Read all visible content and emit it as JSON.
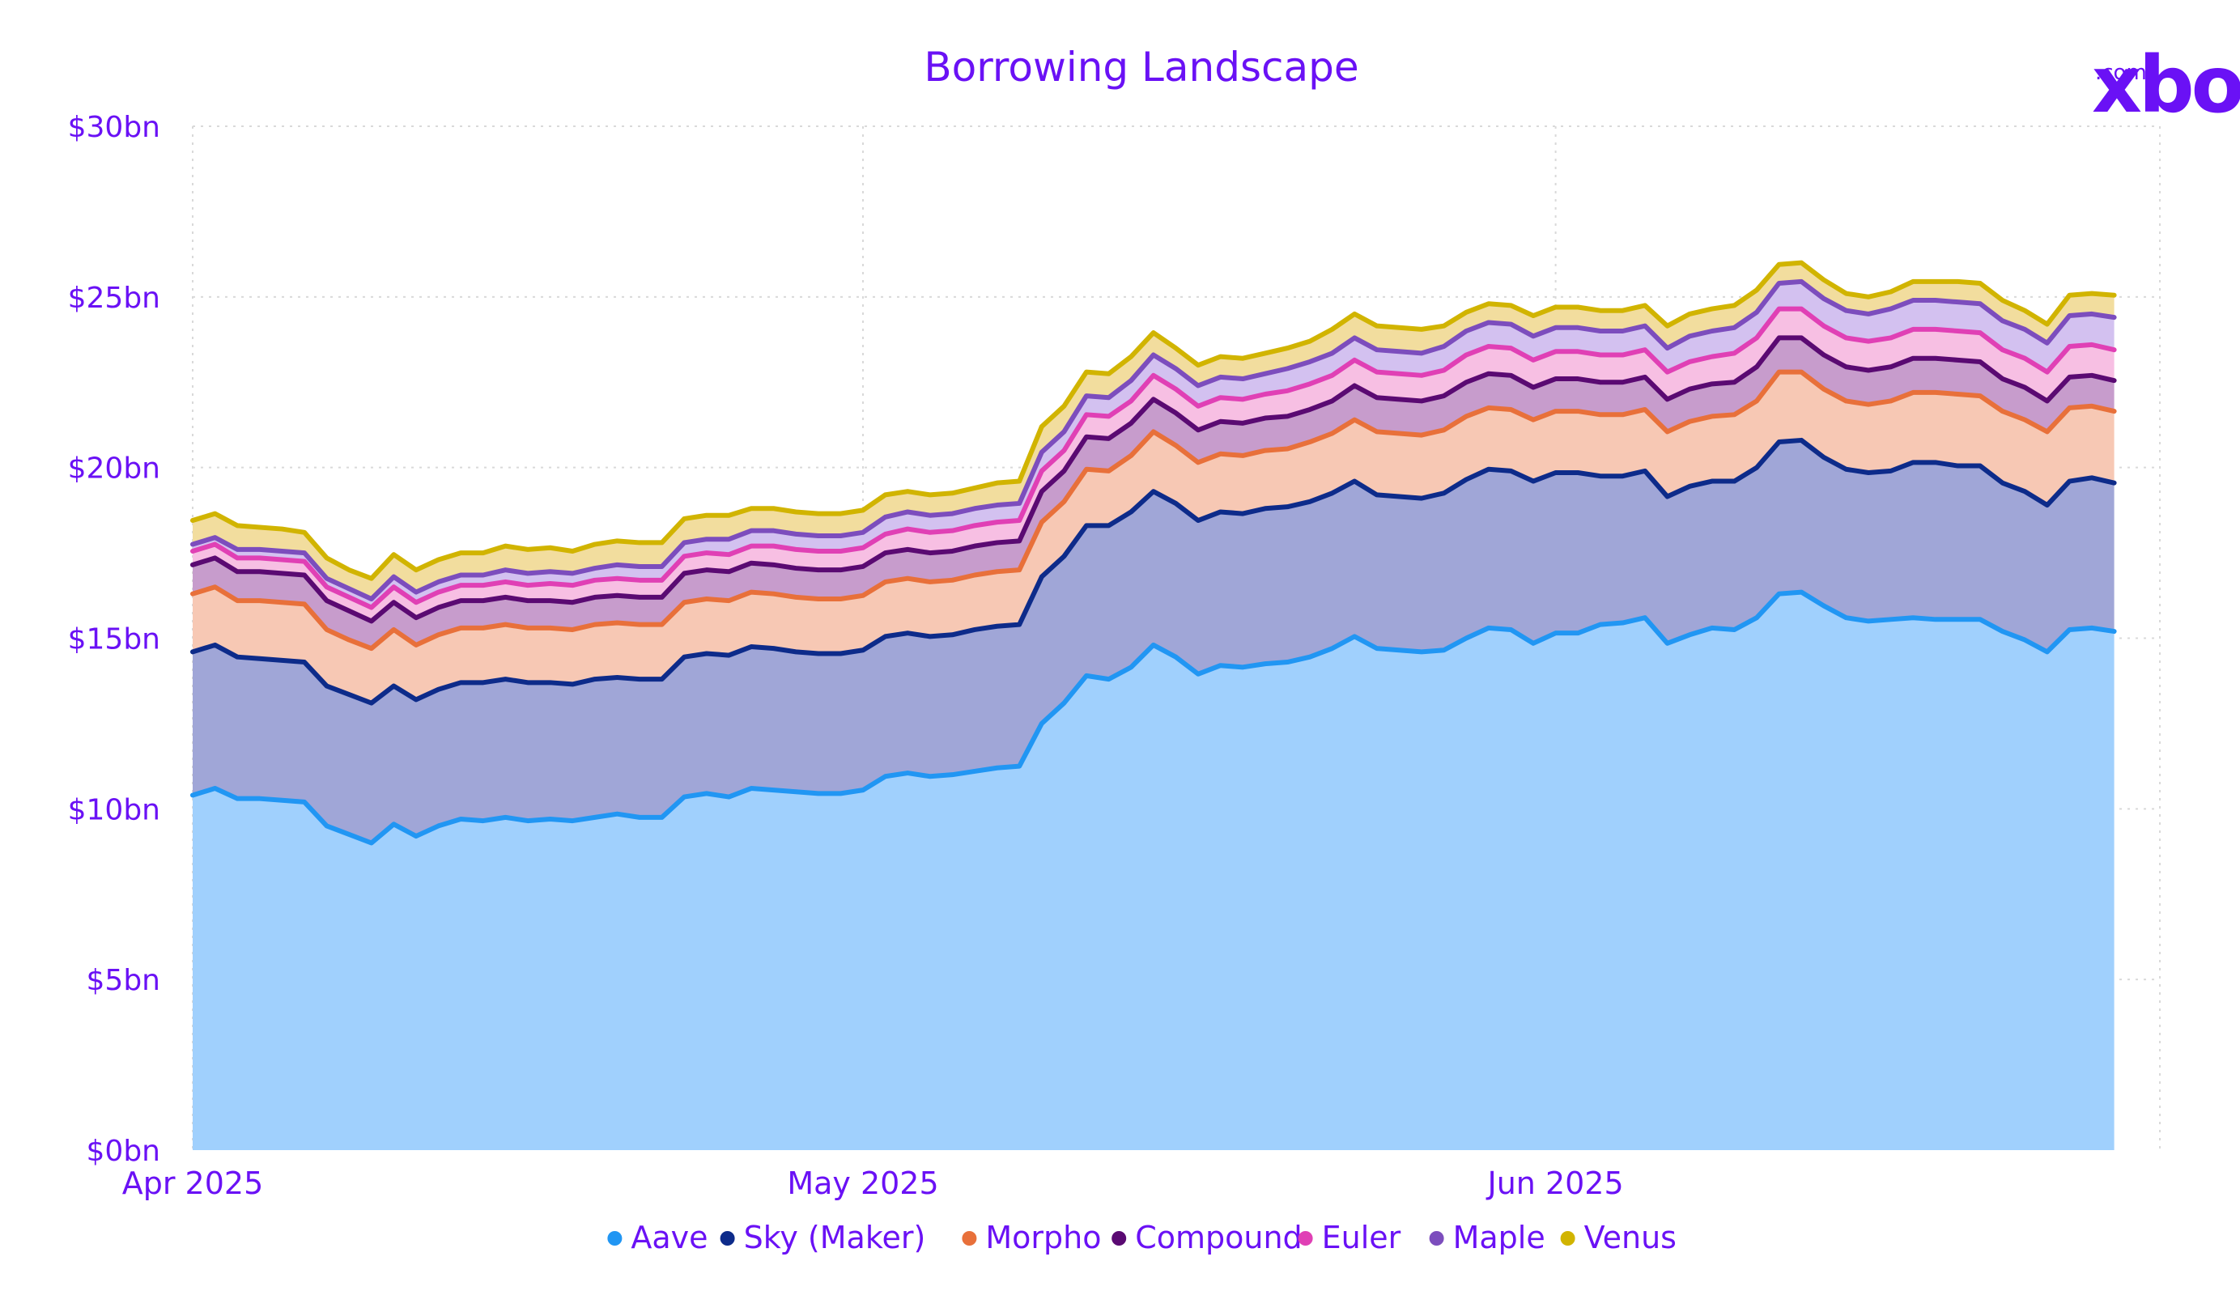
{
  "brand": {
    "name": "xbo",
    "suffix": ".com",
    "color": "#6a11f5"
  },
  "chart_data": {
    "type": "area",
    "stacked": true,
    "title": "Borrowing Landscape",
    "xlabel": "",
    "ylabel": "",
    "ylim": [
      0,
      30
    ],
    "yticks": [
      {
        "value": 0,
        "label": "$0bn"
      },
      {
        "value": 5,
        "label": "$5bn"
      },
      {
        "value": 10,
        "label": "$10bn"
      },
      {
        "value": 15,
        "label": "$15bn"
      },
      {
        "value": 20,
        "label": "$20bn"
      },
      {
        "value": 25,
        "label": "$25bn"
      },
      {
        "value": 30,
        "label": "$30bn"
      }
    ],
    "xticks": [
      {
        "value": 0,
        "label": "Apr 2025"
      },
      {
        "value": 30,
        "label": "May 2025"
      },
      {
        "value": 61,
        "label": "Jun 2025"
      }
    ],
    "x_start": "2025-04-01",
    "grid": true,
    "legend_position": "bottom-center",
    "series": [
      {
        "name": "Aave",
        "color": "#2196f3",
        "fill": "#a0d0fd",
        "values": [
          10.4,
          10.6,
          10.3,
          10.3,
          10.25,
          10.2,
          9.5,
          9.25,
          9.0,
          9.55,
          9.2,
          9.5,
          9.7,
          9.65,
          9.75,
          9.65,
          9.7,
          9.65,
          9.75,
          9.85,
          9.75,
          9.75,
          10.35,
          10.45,
          10.35,
          10.6,
          10.55,
          10.5,
          10.45,
          10.45,
          10.55,
          10.95,
          11.05,
          10.95,
          11.0,
          11.1,
          11.2,
          11.25,
          12.5,
          13.1,
          13.9,
          13.8,
          14.15,
          14.8,
          14.45,
          13.95,
          14.2,
          14.15,
          14.25,
          14.3,
          14.45,
          14.7,
          15.05,
          14.7,
          14.65,
          14.6,
          14.65,
          15.0,
          15.3,
          15.25,
          14.85,
          15.15,
          15.15,
          15.4,
          15.45,
          15.6,
          14.85,
          15.1,
          15.3,
          15.25,
          15.6,
          16.3,
          16.35,
          15.95,
          15.6,
          15.5,
          15.55,
          15.6,
          15.55,
          15.55,
          15.55,
          15.2,
          14.95,
          14.6,
          15.25,
          15.3,
          15.2
        ]
      },
      {
        "name": "Sky (Maker)",
        "color": "#0d2b8a",
        "fill": "#a0a6d7",
        "values": [
          4.2,
          4.2,
          4.15,
          4.1,
          4.1,
          4.1,
          4.1,
          4.1,
          4.1,
          4.05,
          4.0,
          4.0,
          4.0,
          4.05,
          4.05,
          4.05,
          4.0,
          4.0,
          4.05,
          4.0,
          4.05,
          4.05,
          4.1,
          4.1,
          4.15,
          4.15,
          4.15,
          4.1,
          4.1,
          4.1,
          4.1,
          4.1,
          4.1,
          4.1,
          4.1,
          4.15,
          4.15,
          4.15,
          4.3,
          4.3,
          4.4,
          4.5,
          4.55,
          4.5,
          4.5,
          4.5,
          4.5,
          4.5,
          4.55,
          4.55,
          4.55,
          4.55,
          4.55,
          4.5,
          4.5,
          4.5,
          4.6,
          4.65,
          4.65,
          4.65,
          4.75,
          4.7,
          4.7,
          4.35,
          4.3,
          4.3,
          4.3,
          4.35,
          4.3,
          4.35,
          4.4,
          4.45,
          4.45,
          4.35,
          4.35,
          4.35,
          4.35,
          4.55,
          4.6,
          4.5,
          4.5,
          4.35,
          4.35,
          4.3,
          4.35,
          4.4,
          4.35
        ]
      },
      {
        "name": "Morpho",
        "color": "#e8703a",
        "fill": "#f7c8b4",
        "values": [
          1.7,
          1.7,
          1.65,
          1.7,
          1.7,
          1.7,
          1.65,
          1.6,
          1.6,
          1.65,
          1.6,
          1.6,
          1.6,
          1.6,
          1.6,
          1.6,
          1.6,
          1.6,
          1.6,
          1.6,
          1.6,
          1.6,
          1.6,
          1.6,
          1.6,
          1.6,
          1.6,
          1.6,
          1.6,
          1.6,
          1.6,
          1.6,
          1.6,
          1.6,
          1.6,
          1.6,
          1.6,
          1.6,
          1.6,
          1.6,
          1.65,
          1.6,
          1.65,
          1.75,
          1.7,
          1.7,
          1.7,
          1.7,
          1.7,
          1.7,
          1.75,
          1.75,
          1.8,
          1.85,
          1.85,
          1.85,
          1.85,
          1.85,
          1.8,
          1.8,
          1.8,
          1.8,
          1.8,
          1.8,
          1.8,
          1.8,
          1.9,
          1.9,
          1.9,
          1.95,
          1.95,
          2.05,
          2.0,
          2.0,
          2.0,
          2.0,
          2.05,
          2.05,
          2.05,
          2.1,
          2.05,
          2.1,
          2.1,
          2.15,
          2.15,
          2.1,
          2.1
        ]
      },
      {
        "name": "Compound",
        "color": "#5a0a72",
        "fill": "#c79ccc",
        "values": [
          0.85,
          0.85,
          0.85,
          0.85,
          0.85,
          0.85,
          0.85,
          0.85,
          0.8,
          0.8,
          0.8,
          0.8,
          0.8,
          0.8,
          0.8,
          0.8,
          0.8,
          0.8,
          0.8,
          0.8,
          0.8,
          0.8,
          0.85,
          0.85,
          0.85,
          0.85,
          0.85,
          0.85,
          0.85,
          0.85,
          0.85,
          0.85,
          0.85,
          0.85,
          0.85,
          0.85,
          0.85,
          0.85,
          0.9,
          0.9,
          0.95,
          0.95,
          0.95,
          0.95,
          0.95,
          0.95,
          0.95,
          0.95,
          0.95,
          0.95,
          0.95,
          0.95,
          1.0,
          1.0,
          1.0,
          1.0,
          1.0,
          1.0,
          1.0,
          1.0,
          0.95,
          0.95,
          0.95,
          0.95,
          0.95,
          0.95,
          0.95,
          0.95,
          0.95,
          0.95,
          1.0,
          1.0,
          1.0,
          1.0,
          1.0,
          1.0,
          1.0,
          1.0,
          1.0,
          1.0,
          1.0,
          0.95,
          0.95,
          0.9,
          0.9,
          0.9,
          0.9
        ]
      },
      {
        "name": "Euler",
        "color": "#e040b5",
        "fill": "#f7bfe3",
        "values": [
          0.4,
          0.4,
          0.4,
          0.4,
          0.4,
          0.4,
          0.4,
          0.4,
          0.4,
          0.45,
          0.45,
          0.45,
          0.45,
          0.45,
          0.45,
          0.45,
          0.5,
          0.5,
          0.5,
          0.5,
          0.5,
          0.5,
          0.5,
          0.5,
          0.5,
          0.5,
          0.55,
          0.55,
          0.55,
          0.55,
          0.55,
          0.55,
          0.6,
          0.6,
          0.6,
          0.6,
          0.6,
          0.6,
          0.6,
          0.6,
          0.65,
          0.65,
          0.65,
          0.7,
          0.7,
          0.7,
          0.7,
          0.7,
          0.7,
          0.75,
          0.75,
          0.75,
          0.75,
          0.75,
          0.75,
          0.75,
          0.75,
          0.8,
          0.8,
          0.8,
          0.8,
          0.8,
          0.8,
          0.8,
          0.8,
          0.8,
          0.8,
          0.8,
          0.8,
          0.85,
          0.85,
          0.85,
          0.85,
          0.85,
          0.85,
          0.85,
          0.85,
          0.85,
          0.85,
          0.85,
          0.85,
          0.85,
          0.85,
          0.85,
          0.9,
          0.9,
          0.9
        ]
      },
      {
        "name": "Maple",
        "color": "#7c4dbd",
        "fill": "#d3c1f0",
        "values": [
          0.2,
          0.2,
          0.25,
          0.25,
          0.25,
          0.25,
          0.25,
          0.25,
          0.25,
          0.3,
          0.3,
          0.3,
          0.3,
          0.3,
          0.35,
          0.35,
          0.35,
          0.35,
          0.35,
          0.4,
          0.4,
          0.4,
          0.4,
          0.4,
          0.45,
          0.45,
          0.45,
          0.45,
          0.45,
          0.45,
          0.45,
          0.5,
          0.5,
          0.5,
          0.5,
          0.5,
          0.5,
          0.5,
          0.55,
          0.55,
          0.55,
          0.55,
          0.6,
          0.6,
          0.6,
          0.6,
          0.6,
          0.6,
          0.6,
          0.65,
          0.65,
          0.65,
          0.65,
          0.65,
          0.65,
          0.65,
          0.7,
          0.7,
          0.7,
          0.7,
          0.7,
          0.7,
          0.7,
          0.7,
          0.7,
          0.7,
          0.7,
          0.75,
          0.75,
          0.75,
          0.75,
          0.75,
          0.8,
          0.8,
          0.8,
          0.8,
          0.85,
          0.85,
          0.85,
          0.85,
          0.85,
          0.85,
          0.85,
          0.85,
          0.9,
          0.9,
          0.95
        ]
      },
      {
        "name": "Venus",
        "color": "#d1b400",
        "fill": "#f2dd9e",
        "values": [
          0.7,
          0.7,
          0.7,
          0.65,
          0.65,
          0.6,
          0.6,
          0.55,
          0.6,
          0.65,
          0.65,
          0.65,
          0.65,
          0.65,
          0.7,
          0.7,
          0.7,
          0.65,
          0.7,
          0.7,
          0.7,
          0.7,
          0.7,
          0.7,
          0.7,
          0.65,
          0.65,
          0.65,
          0.65,
          0.65,
          0.65,
          0.65,
          0.6,
          0.6,
          0.6,
          0.6,
          0.65,
          0.65,
          0.75,
          0.75,
          0.7,
          0.7,
          0.7,
          0.65,
          0.6,
          0.6,
          0.6,
          0.6,
          0.6,
          0.6,
          0.6,
          0.7,
          0.7,
          0.7,
          0.7,
          0.7,
          0.6,
          0.55,
          0.55,
          0.55,
          0.6,
          0.6,
          0.6,
          0.6,
          0.6,
          0.6,
          0.65,
          0.65,
          0.65,
          0.65,
          0.65,
          0.55,
          0.55,
          0.55,
          0.5,
          0.5,
          0.5,
          0.55,
          0.55,
          0.6,
          0.6,
          0.6,
          0.55,
          0.55,
          0.6,
          0.6,
          0.65
        ]
      }
    ]
  }
}
